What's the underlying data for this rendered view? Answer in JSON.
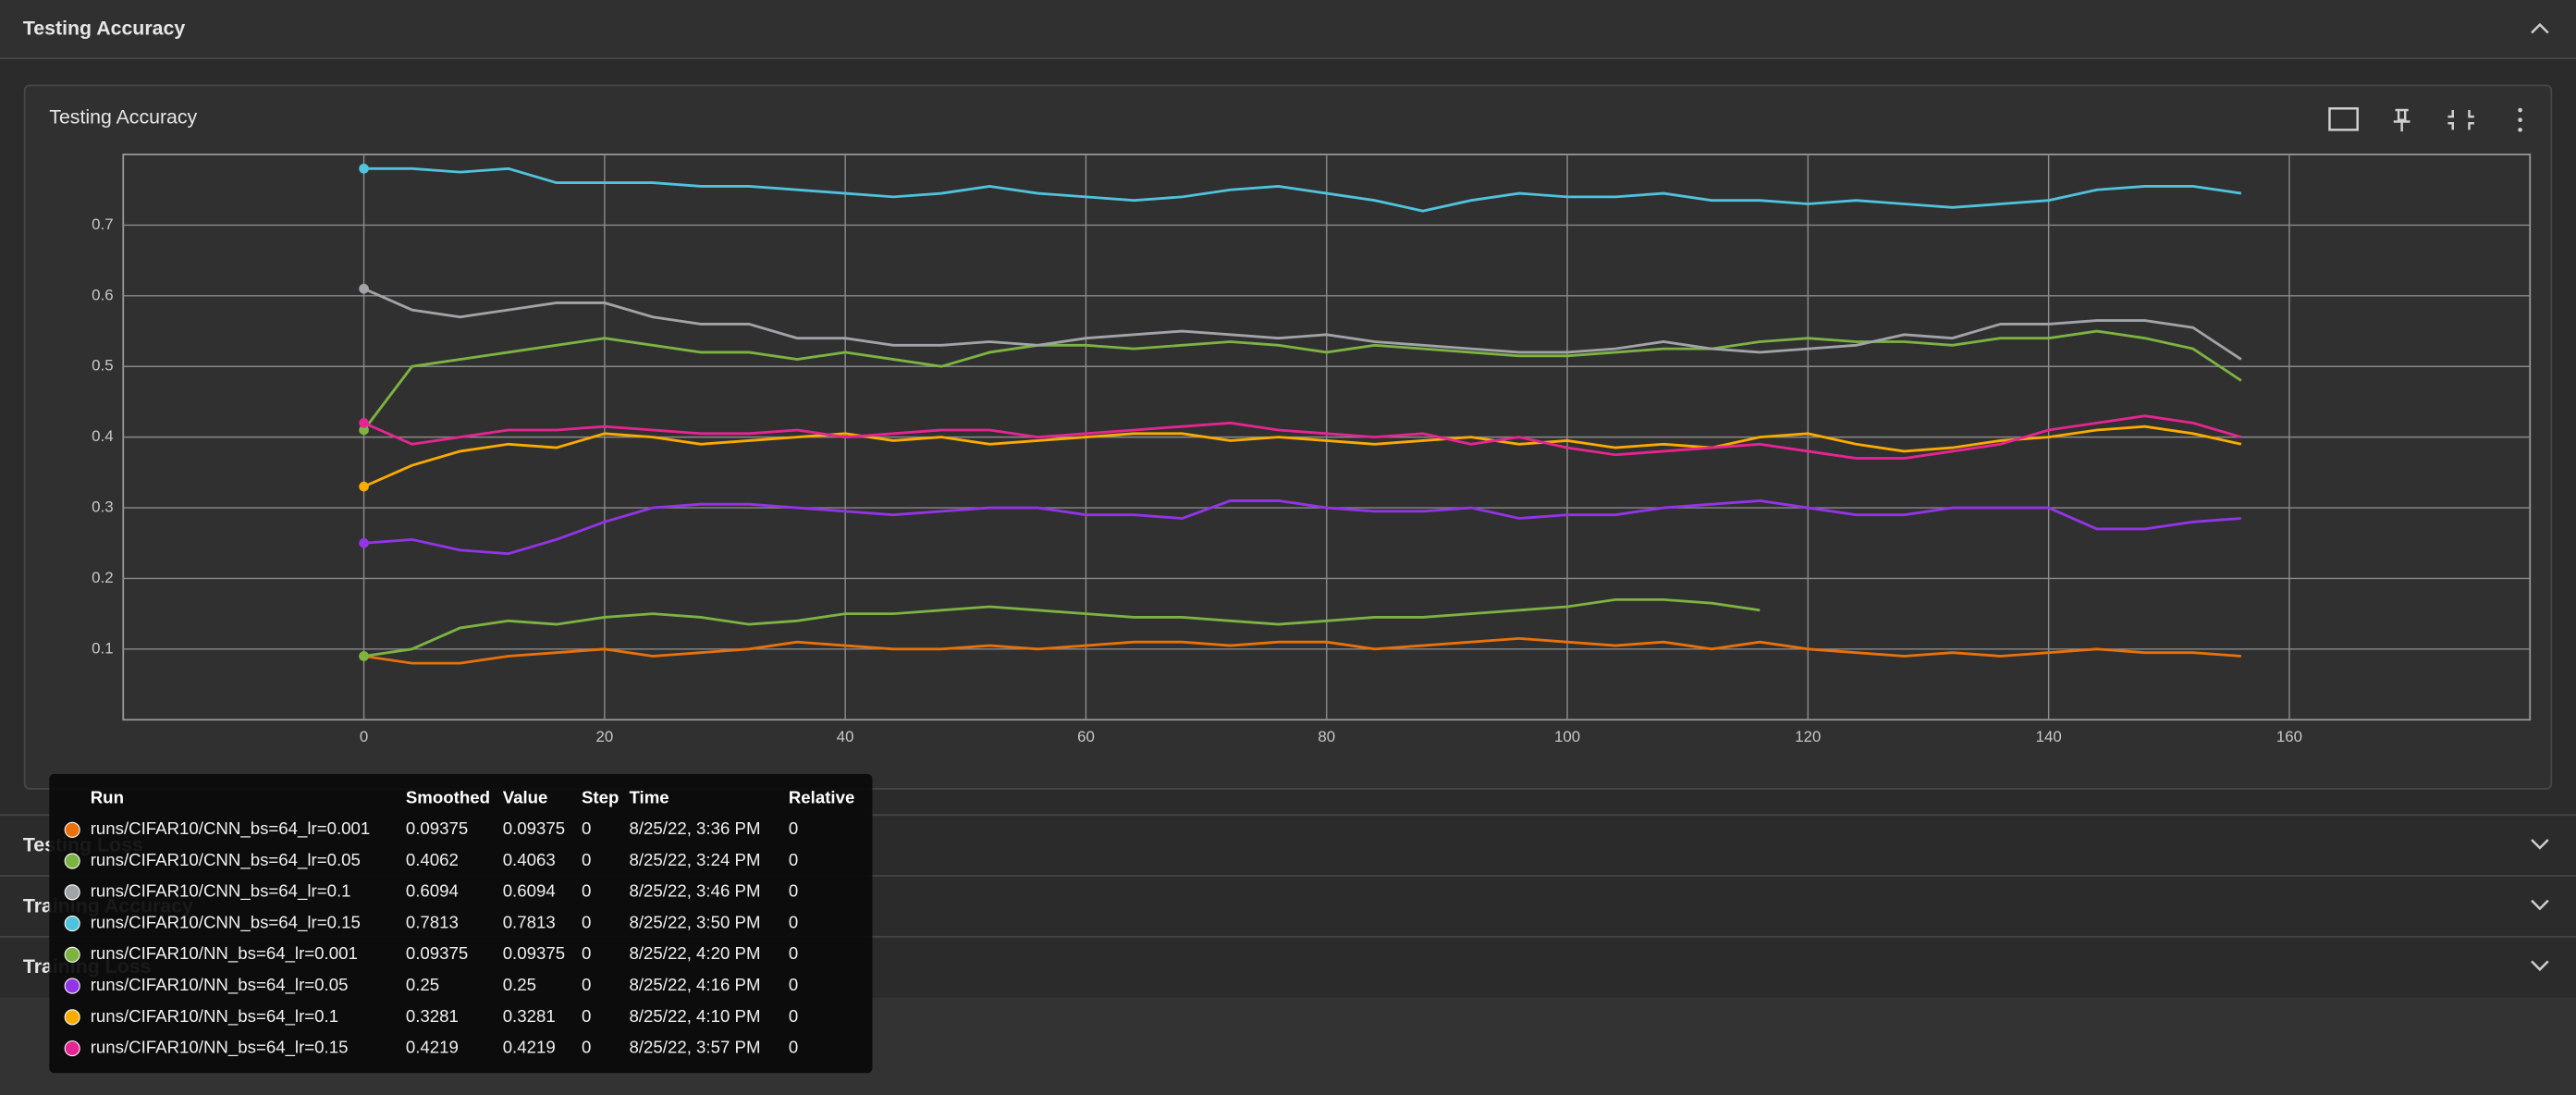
{
  "header": {
    "title": "Testing Accuracy"
  },
  "card": {
    "title": "Testing Accuracy"
  },
  "sections": [
    "Testing Loss",
    "Training Accuracy",
    "Training Loss"
  ],
  "chart_data": {
    "type": "line",
    "grid": true,
    "xlim": [
      -20,
      180
    ],
    "xticks": [
      0,
      20,
      40,
      60,
      80,
      100,
      120,
      140,
      160
    ],
    "ylim": [
      0,
      0.8
    ],
    "yticks": [
      0.1,
      0.2,
      0.3,
      0.4,
      0.5,
      0.6,
      0.7
    ],
    "x": [
      0,
      4,
      8,
      12,
      16,
      20,
      24,
      28,
      32,
      36,
      40,
      44,
      48,
      52,
      56,
      60,
      64,
      68,
      72,
      76,
      80,
      84,
      88,
      92,
      96,
      100,
      104,
      108,
      112,
      116,
      120,
      124,
      128,
      132,
      136,
      140,
      144,
      148,
      152,
      156
    ],
    "series": [
      {
        "name": "runs/CIFAR10/CNN_bs=64_lr=0.001",
        "color": "#e8710a",
        "values": [
          0.09,
          0.08,
          0.08,
          0.09,
          0.095,
          0.1,
          0.09,
          0.095,
          0.1,
          0.11,
          0.105,
          0.1,
          0.1,
          0.105,
          0.1,
          0.105,
          0.11,
          0.11,
          0.105,
          0.11,
          0.11,
          0.1,
          0.105,
          0.11,
          0.115,
          0.11,
          0.105,
          0.11,
          0.1,
          0.11,
          0.1,
          0.095,
          0.09,
          0.095,
          0.09,
          0.095,
          0.1,
          0.095,
          0.095,
          0.09
        ]
      },
      {
        "name": "runs/CIFAR10/CNN_bs=64_lr=0.05",
        "color": "#7cb342",
        "values": [
          0.41,
          0.5,
          0.51,
          0.52,
          0.53,
          0.54,
          0.53,
          0.52,
          0.52,
          0.51,
          0.52,
          0.51,
          0.5,
          0.52,
          0.53,
          0.53,
          0.525,
          0.53,
          0.535,
          0.53,
          0.52,
          0.53,
          0.525,
          0.52,
          0.515,
          0.515,
          0.52,
          0.525,
          0.525,
          0.535,
          0.54,
          0.535,
          0.535,
          0.53,
          0.54,
          0.54,
          0.55,
          0.54,
          0.525,
          0.48
        ]
      },
      {
        "name": "runs/CIFAR10/CNN_bs=64_lr=0.1",
        "color": "#a0a4a8",
        "values": [
          0.61,
          0.58,
          0.57,
          0.58,
          0.59,
          0.59,
          0.57,
          0.56,
          0.56,
          0.54,
          0.54,
          0.53,
          0.53,
          0.535,
          0.53,
          0.54,
          0.545,
          0.55,
          0.545,
          0.54,
          0.545,
          0.535,
          0.53,
          0.525,
          0.52,
          0.52,
          0.525,
          0.535,
          0.525,
          0.52,
          0.525,
          0.53,
          0.545,
          0.54,
          0.56,
          0.56,
          0.565,
          0.565,
          0.555,
          0.51
        ]
      },
      {
        "name": "runs/CIFAR10/CNN_bs=64_lr=0.15",
        "color": "#4fc3dc",
        "values": [
          0.78,
          0.78,
          0.775,
          0.78,
          0.76,
          0.76,
          0.76,
          0.755,
          0.755,
          0.75,
          0.745,
          0.74,
          0.745,
          0.755,
          0.745,
          0.74,
          0.735,
          0.74,
          0.75,
          0.755,
          0.745,
          0.735,
          0.72,
          0.735,
          0.745,
          0.74,
          0.74,
          0.745,
          0.735,
          0.735,
          0.73,
          0.735,
          0.73,
          0.725,
          0.73,
          0.735,
          0.75,
          0.755,
          0.755,
          0.745
        ]
      },
      {
        "name": "runs/CIFAR10/NN_bs=64_lr=0.001",
        "color": "#7cb342",
        "values": [
          0.09,
          0.1,
          0.13,
          0.14,
          0.135,
          0.145,
          0.15,
          0.145,
          0.135,
          0.14,
          0.15,
          0.15,
          0.155,
          0.16,
          0.155,
          0.15,
          0.145,
          0.145,
          0.14,
          0.135,
          0.14,
          0.145,
          0.145,
          0.15,
          0.155,
          0.16,
          0.17,
          0.17,
          0.165,
          0.155,
          null,
          null,
          null,
          null,
          null,
          null,
          null,
          null,
          null,
          null
        ]
      },
      {
        "name": "runs/CIFAR10/NN_bs=64_lr=0.05",
        "color": "#9334e6",
        "values": [
          0.25,
          0.255,
          0.24,
          0.235,
          0.255,
          0.28,
          0.3,
          0.305,
          0.305,
          0.3,
          0.295,
          0.29,
          0.295,
          0.3,
          0.3,
          0.29,
          0.29,
          0.285,
          0.31,
          0.31,
          0.3,
          0.295,
          0.295,
          0.3,
          0.285,
          0.29,
          0.29,
          0.3,
          0.305,
          0.31,
          0.3,
          0.29,
          0.29,
          0.3,
          0.3,
          0.3,
          0.27,
          0.27,
          0.28,
          0.285
        ]
      },
      {
        "name": "runs/CIFAR10/NN_bs=64_lr=0.1",
        "color": "#f9ab00",
        "values": [
          0.33,
          0.36,
          0.38,
          0.39,
          0.385,
          0.405,
          0.4,
          0.39,
          0.395,
          0.4,
          0.405,
          0.395,
          0.4,
          0.39,
          0.395,
          0.4,
          0.405,
          0.405,
          0.395,
          0.4,
          0.395,
          0.39,
          0.395,
          0.4,
          0.39,
          0.395,
          0.385,
          0.39,
          0.385,
          0.4,
          0.405,
          0.39,
          0.38,
          0.385,
          0.395,
          0.4,
          0.41,
          0.415,
          0.405,
          0.39
        ]
      },
      {
        "name": "runs/CIFAR10/NN_bs=64_lr=0.15",
        "color": "#e52592",
        "values": [
          0.42,
          0.39,
          0.4,
          0.41,
          0.41,
          0.415,
          0.41,
          0.405,
          0.405,
          0.41,
          0.4,
          0.405,
          0.41,
          0.41,
          0.4,
          0.405,
          0.41,
          0.415,
          0.42,
          0.41,
          0.405,
          0.4,
          0.405,
          0.39,
          0.4,
          0.385,
          0.375,
          0.38,
          0.385,
          0.39,
          0.38,
          0.37,
          0.37,
          0.38,
          0.39,
          0.41,
          0.42,
          0.43,
          0.42,
          0.4
        ]
      }
    ]
  },
  "tooltip": {
    "headers": [
      "Run",
      "Smoothed",
      "Value",
      "Step",
      "Time",
      "Relative"
    ],
    "rows": [
      [
        0.09375,
        0.09375,
        0,
        "8/25/22, 3:36 PM",
        0
      ],
      [
        0.4062,
        0.4063,
        0,
        "8/25/22, 3:24 PM",
        0
      ],
      [
        0.6094,
        0.6094,
        0,
        "8/25/22, 3:46 PM",
        0
      ],
      [
        0.7813,
        0.7813,
        0,
        "8/25/22, 3:50 PM",
        0
      ],
      [
        0.09375,
        0.09375,
        0,
        "8/25/22, 4:20 PM",
        0
      ],
      [
        0.25,
        0.25,
        0,
        "8/25/22, 4:16 PM",
        0
      ],
      [
        0.3281,
        0.3281,
        0,
        "8/25/22, 4:10 PM",
        0
      ],
      [
        0.4219,
        0.4219,
        0,
        "8/25/22, 3:57 PM",
        0
      ]
    ]
  }
}
